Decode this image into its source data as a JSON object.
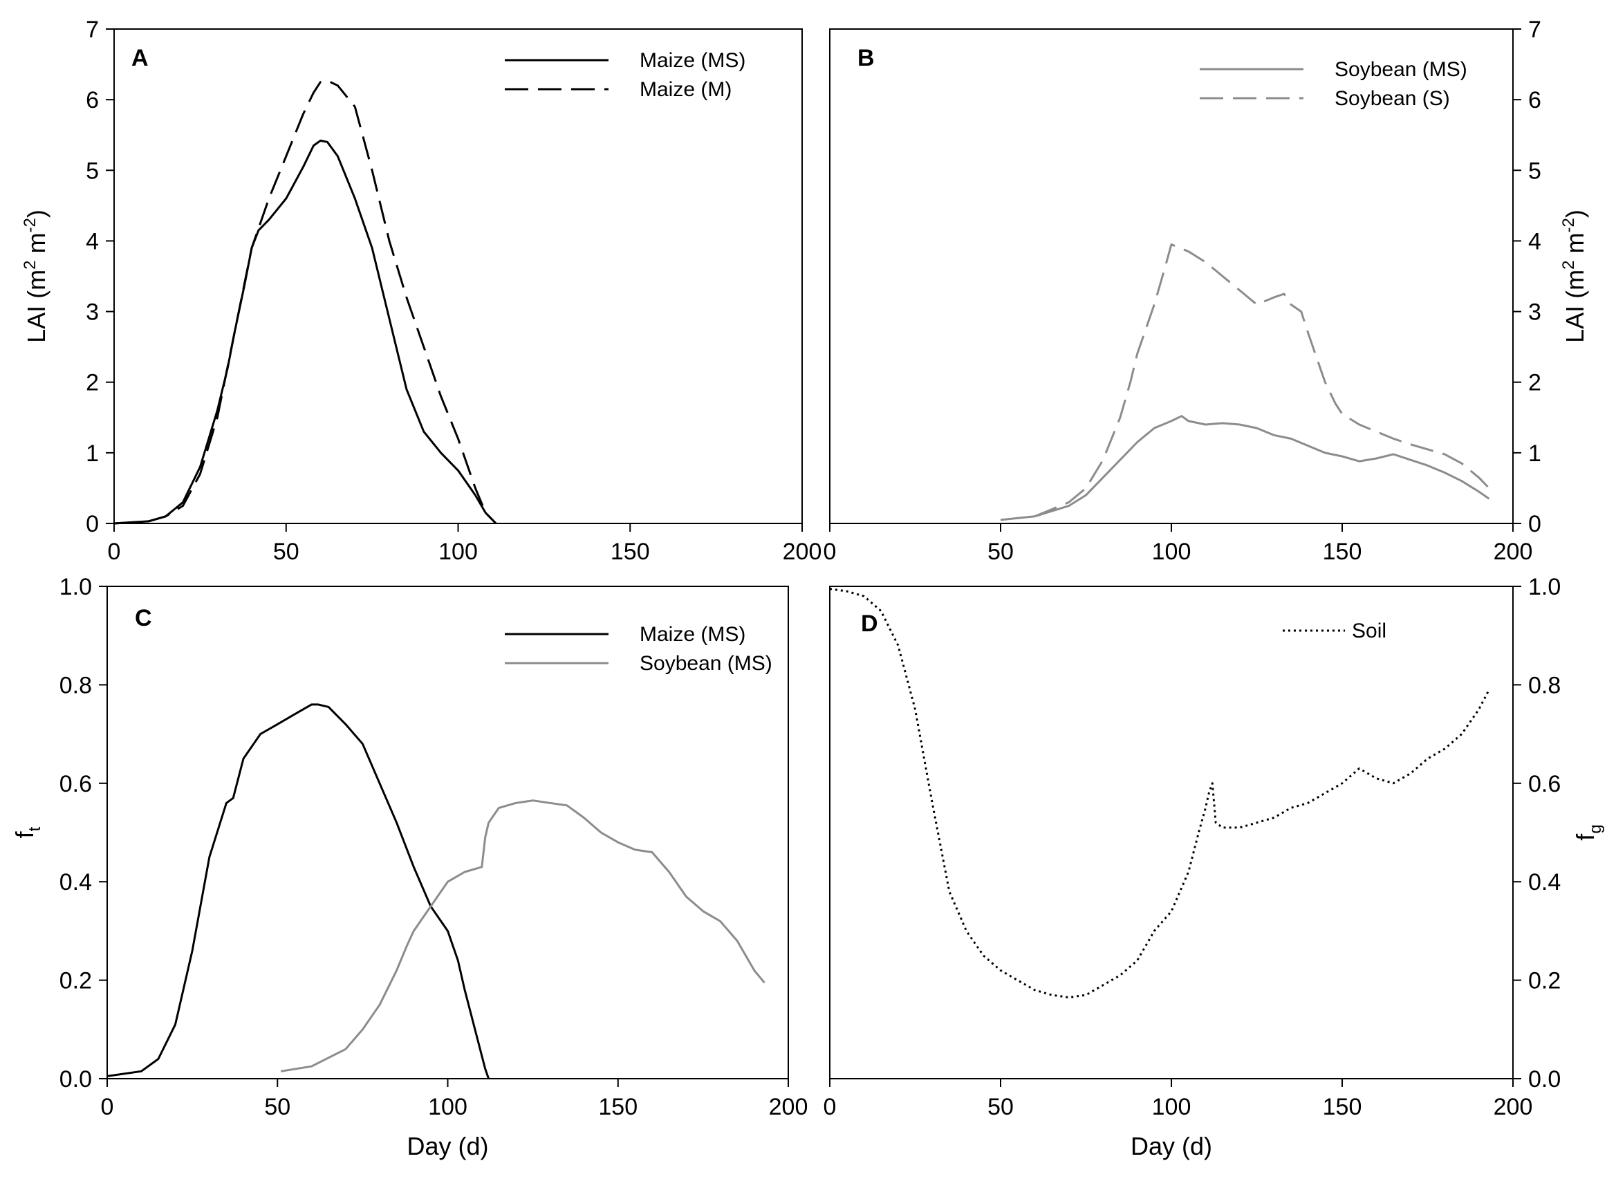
{
  "chart_data": [
    {
      "panel": "A",
      "type": "line",
      "ylabel": "LAI (m² m⁻²)",
      "ylabel_parts": {
        "base": "LAI (m",
        "sup1": "2",
        "mid": " m",
        "sup2": "-2",
        "end": ")"
      },
      "xlabel": "",
      "xlim": [
        0,
        200
      ],
      "ylim": [
        0,
        7
      ],
      "xticks": [
        "0",
        "50",
        "100",
        "150",
        "200"
      ],
      "yticks": [
        "0",
        "1",
        "2",
        "3",
        "4",
        "5",
        "6",
        "7"
      ],
      "legend_position": "top-right",
      "series": [
        {
          "name": "Maize (MS)",
          "color": "#000000",
          "dash": "solid",
          "x": [
            0,
            10,
            15,
            20,
            25,
            30,
            33,
            35,
            38,
            40,
            42,
            45,
            50,
            55,
            58,
            60,
            62,
            65,
            70,
            75,
            78,
            80,
            85,
            90,
            95,
            100,
            105,
            108,
            111
          ],
          "y": [
            0,
            0.03,
            0.1,
            0.3,
            0.8,
            1.6,
            2.2,
            2.7,
            3.4,
            3.9,
            4.15,
            4.3,
            4.6,
            5.05,
            5.35,
            5.42,
            5.4,
            5.2,
            4.6,
            3.9,
            3.3,
            2.9,
            1.9,
            1.3,
            1.0,
            0.75,
            0.4,
            0.15,
            0
          ]
        },
        {
          "name": "Maize (M)",
          "color": "#000000",
          "dash": "dashed",
          "x": [
            0,
            10,
            15,
            20,
            25,
            30,
            35,
            40,
            45,
            50,
            55,
            58,
            60,
            62,
            65,
            70,
            75,
            80,
            85,
            90,
            95,
            100,
            105,
            108,
            111
          ],
          "y": [
            0,
            0.03,
            0.1,
            0.25,
            0.7,
            1.5,
            2.7,
            3.9,
            4.6,
            5.2,
            5.8,
            6.1,
            6.25,
            6.27,
            6.2,
            5.9,
            5.0,
            4.0,
            3.2,
            2.5,
            1.8,
            1.2,
            0.5,
            0.15,
            0
          ]
        }
      ]
    },
    {
      "panel": "B",
      "type": "line",
      "ylabel": "LAI (m² m⁻²)",
      "ylabel_parts": {
        "base": "LAI (m",
        "sup1": "2",
        "mid": " m",
        "sup2": "-2",
        "end": ")"
      },
      "xlabel": "",
      "xlim": [
        0,
        200
      ],
      "ylim": [
        0,
        7
      ],
      "xticks": [
        "0",
        "50",
        "100",
        "150",
        "200"
      ],
      "yticks": [
        "0",
        "1",
        "2",
        "3",
        "4",
        "5",
        "6",
        "7"
      ],
      "legend_position": "top-right",
      "series": [
        {
          "name": "Soybean (MS)",
          "color": "#8c8c8c",
          "dash": "solid",
          "x": [
            50,
            60,
            70,
            75,
            80,
            85,
            90,
            95,
            100,
            103,
            105,
            110,
            115,
            120,
            125,
            130,
            135,
            140,
            145,
            150,
            155,
            160,
            165,
            170,
            175,
            180,
            185,
            190,
            193
          ],
          "y": [
            0.05,
            0.1,
            0.25,
            0.4,
            0.65,
            0.9,
            1.15,
            1.35,
            1.45,
            1.52,
            1.45,
            1.4,
            1.42,
            1.4,
            1.35,
            1.25,
            1.2,
            1.1,
            1.0,
            0.95,
            0.88,
            0.92,
            0.98,
            0.9,
            0.82,
            0.72,
            0.6,
            0.45,
            0.35
          ]
        },
        {
          "name": "Soybean (S)",
          "color": "#8c8c8c",
          "dash": "dashed",
          "x": [
            60,
            70,
            75,
            80,
            85,
            88,
            90,
            95,
            98,
            100,
            105,
            110,
            115,
            120,
            125,
            130,
            133,
            135,
            138,
            140,
            145,
            148,
            150,
            155,
            160,
            165,
            170,
            175,
            180,
            185,
            190,
            193
          ],
          "y": [
            0.1,
            0.3,
            0.5,
            0.9,
            1.5,
            2.0,
            2.4,
            3.1,
            3.6,
            3.95,
            3.85,
            3.7,
            3.5,
            3.3,
            3.1,
            3.2,
            3.25,
            3.1,
            3.0,
            2.7,
            2.0,
            1.7,
            1.55,
            1.4,
            1.3,
            1.2,
            1.12,
            1.05,
            0.98,
            0.85,
            0.65,
            0.5
          ]
        }
      ]
    },
    {
      "panel": "C",
      "type": "line",
      "ylabel": "f_t",
      "ylabel_parts": {
        "base": "f",
        "sub": "t"
      },
      "xlabel": "Day (d)",
      "xlim": [
        0,
        200
      ],
      "ylim": [
        0,
        1
      ],
      "xticks": [
        "0",
        "50",
        "100",
        "150",
        "200"
      ],
      "yticks": [
        "0.0",
        "0.2",
        "0.4",
        "0.6",
        "0.8",
        "1.0"
      ],
      "legend_position": "top-right",
      "series": [
        {
          "name": "Maize (MS)",
          "color": "#000000",
          "dash": "solid",
          "x": [
            0,
            10,
            15,
            20,
            25,
            30,
            35,
            37,
            40,
            45,
            50,
            55,
            60,
            62,
            65,
            70,
            75,
            80,
            85,
            90,
            95,
            100,
            103,
            105,
            108,
            111,
            112
          ],
          "y": [
            0.005,
            0.015,
            0.04,
            0.11,
            0.26,
            0.45,
            0.56,
            0.57,
            0.65,
            0.7,
            0.72,
            0.74,
            0.76,
            0.76,
            0.755,
            0.72,
            0.68,
            0.6,
            0.52,
            0.43,
            0.35,
            0.3,
            0.24,
            0.18,
            0.1,
            0.02,
            0
          ]
        },
        {
          "name": "Soybean (MS)",
          "color": "#8c8c8c",
          "dash": "solid",
          "x": [
            51,
            60,
            70,
            75,
            80,
            85,
            88,
            90,
            95,
            100,
            105,
            110,
            111,
            112,
            115,
            120,
            125,
            130,
            135,
            140,
            145,
            150,
            155,
            160,
            165,
            170,
            175,
            180,
            185,
            190,
            193
          ],
          "y": [
            0.015,
            0.025,
            0.06,
            0.1,
            0.15,
            0.22,
            0.27,
            0.3,
            0.35,
            0.4,
            0.42,
            0.43,
            0.49,
            0.52,
            0.55,
            0.56,
            0.565,
            0.56,
            0.555,
            0.53,
            0.5,
            0.48,
            0.465,
            0.46,
            0.42,
            0.37,
            0.34,
            0.32,
            0.28,
            0.22,
            0.195
          ]
        }
      ]
    },
    {
      "panel": "D",
      "type": "line",
      "ylabel": "f_g",
      "ylabel_parts": {
        "base": "f",
        "sub": "g"
      },
      "xlabel": "Day (d)",
      "xlim": [
        0,
        200
      ],
      "ylim": [
        0,
        1
      ],
      "xticks": [
        "0",
        "50",
        "100",
        "150",
        "200"
      ],
      "yticks": [
        "0.0",
        "0.2",
        "0.4",
        "0.6",
        "0.8",
        "1.0"
      ],
      "legend_position": "top-right",
      "series": [
        {
          "name": "Soil",
          "color": "#000000",
          "dash": "dotted",
          "x": [
            0,
            5,
            10,
            15,
            20,
            25,
            30,
            35,
            40,
            45,
            50,
            55,
            60,
            65,
            70,
            75,
            80,
            85,
            90,
            95,
            100,
            105,
            108,
            110,
            111,
            112,
            113,
            115,
            120,
            125,
            130,
            135,
            140,
            145,
            150,
            155,
            160,
            165,
            170,
            175,
            180,
            185,
            190,
            193
          ],
          "y": [
            0.995,
            0.99,
            0.98,
            0.95,
            0.88,
            0.75,
            0.56,
            0.38,
            0.3,
            0.25,
            0.22,
            0.2,
            0.18,
            0.17,
            0.165,
            0.17,
            0.19,
            0.21,
            0.24,
            0.3,
            0.34,
            0.42,
            0.5,
            0.55,
            0.58,
            0.6,
            0.52,
            0.51,
            0.51,
            0.52,
            0.53,
            0.55,
            0.56,
            0.58,
            0.6,
            0.63,
            0.61,
            0.6,
            0.62,
            0.65,
            0.67,
            0.7,
            0.75,
            0.79
          ]
        }
      ]
    }
  ]
}
